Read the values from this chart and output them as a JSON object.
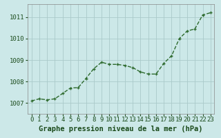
{
  "x": [
    0,
    1,
    2,
    3,
    4,
    5,
    6,
    7,
    8,
    9,
    10,
    11,
    12,
    13,
    14,
    15,
    16,
    17,
    18,
    19,
    20,
    21,
    22,
    23
  ],
  "y": [
    1007.1,
    1007.2,
    1007.15,
    1007.2,
    1007.45,
    1007.7,
    1007.72,
    1008.15,
    1008.6,
    1008.9,
    1008.8,
    1008.8,
    1008.75,
    1008.65,
    1008.45,
    1008.35,
    1008.35,
    1008.85,
    1009.2,
    1010.0,
    1010.35,
    1010.45,
    1011.1,
    1011.2
  ],
  "line_color": "#2d6a2d",
  "marker_color": "#2d6a2d",
  "bg_color": "#cce8e8",
  "grid_color": "#aacaca",
  "xlabel": "Graphe pression niveau de la mer (hPa)",
  "xlabel_fontsize": 7.5,
  "yticks": [
    1007,
    1008,
    1009,
    1010,
    1011
  ],
  "ylim": [
    1006.5,
    1011.6
  ],
  "xlim": [
    -0.5,
    23.5
  ],
  "xticks": [
    0,
    1,
    2,
    3,
    4,
    5,
    6,
    7,
    8,
    9,
    10,
    11,
    12,
    13,
    14,
    15,
    16,
    17,
    18,
    19,
    20,
    21,
    22,
    23
  ],
  "tick_fontsize": 6.5,
  "line_width": 1.0,
  "marker_size": 3.5
}
